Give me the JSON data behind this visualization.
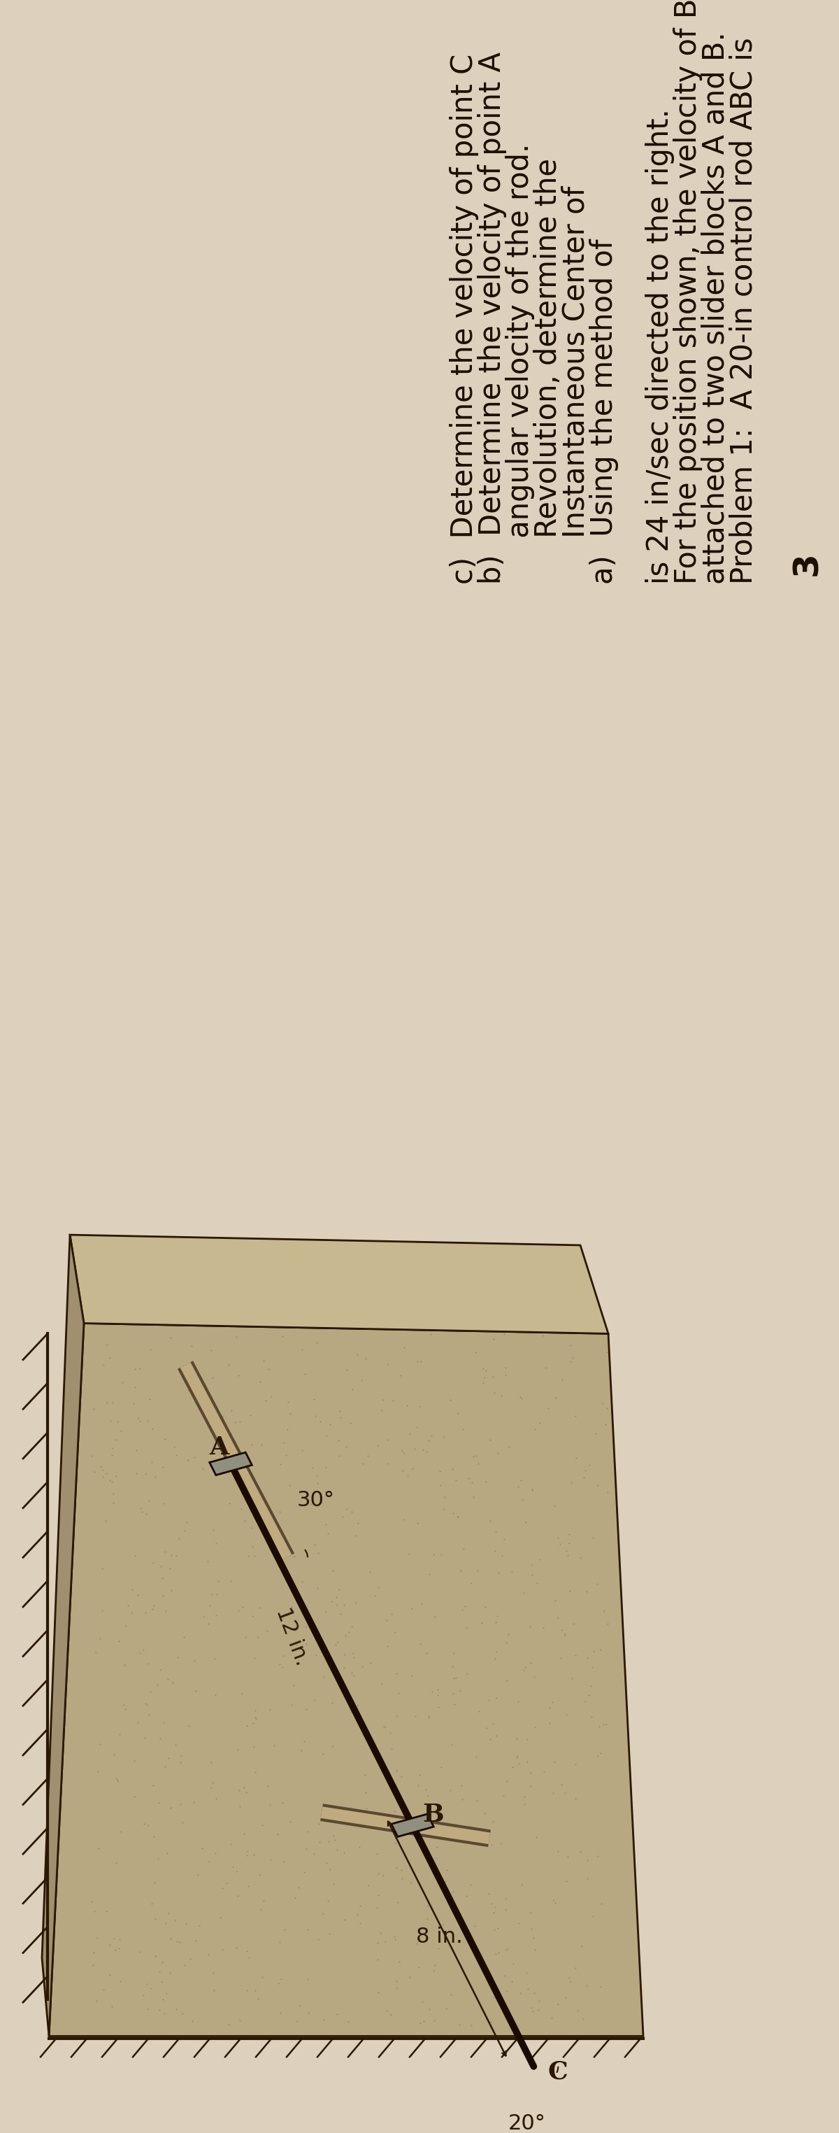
{
  "background_color": "#ddd0bc",
  "page_number": "3",
  "title_line1": "Problem 1:  A 20-in control rod ABC is",
  "title_line2": "attached to two slider blocks A and B.",
  "title_line3": "For the position shown, the velocity of B",
  "title_line4": "is 24 in/sec directed to the right.",
  "part_a1": "a)  Using the method of",
  "part_a2": "     Instantaneous Center of",
  "part_a3": "     Revolution, determine the",
  "part_a4": "     angular velocity of the rod.",
  "part_b": "b)  Determine the velocity of point A",
  "part_c": "c)  Determine the velocity of point C",
  "angle_top": "30°",
  "angle_bottom": "20°",
  "dim_8": "8 in.",
  "dim_12": "12 in.",
  "text_color": "#1a0f00",
  "font_size_main": 30,
  "diagram_stone": "#b8a882",
  "diagram_stone_dark": "#8a7a60",
  "diagram_edge": "#2a1800",
  "rod_color": "#1a0a00",
  "slider_color": "#888070"
}
